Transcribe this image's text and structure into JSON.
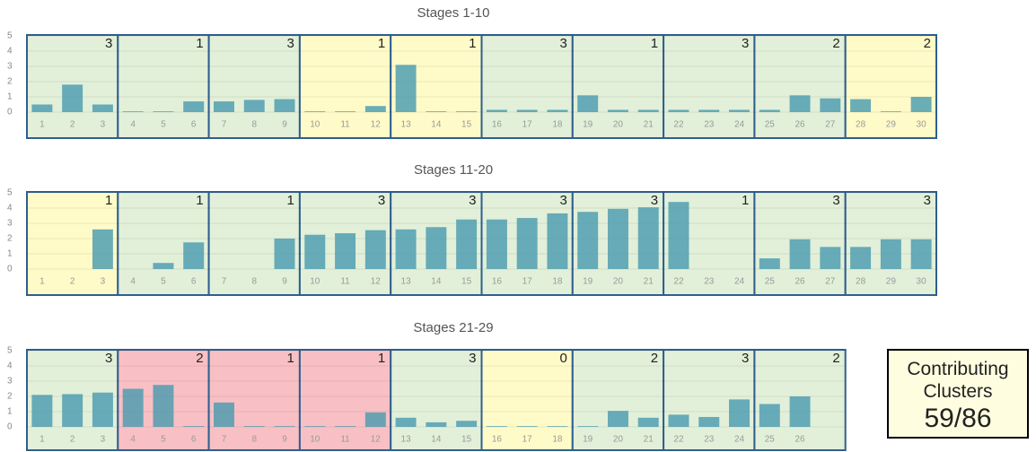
{
  "chart_data": [
    {
      "type": "bar",
      "title": "Stages 1-10",
      "color": "#4a9bb0",
      "categories": [
        "1",
        "2",
        "3",
        "4",
        "5",
        "6",
        "7",
        "8",
        "9",
        "10",
        "11",
        "12",
        "13",
        "14",
        "15",
        "16",
        "17",
        "18",
        "19",
        "20",
        "21",
        "22",
        "23",
        "24",
        "25",
        "26",
        "27",
        "28",
        "29",
        "30"
      ],
      "values": [
        0.5,
        1.8,
        0.5,
        0.05,
        0.05,
        0.7,
        0.7,
        0.8,
        0.85,
        0.05,
        0.05,
        0.4,
        3.1,
        0.05,
        0.05,
        0.15,
        0.15,
        0.15,
        1.1,
        0.15,
        0.15,
        0.15,
        0.15,
        0.15,
        0.15,
        1.1,
        0.9,
        0.85,
        0.05,
        1.0
      ],
      "stages": [
        {
          "count": 3,
          "color": "#e2f0d9"
        },
        {
          "count": 1,
          "color": "#e2f0d9"
        },
        {
          "count": 3,
          "color": "#e2f0d9"
        },
        {
          "count": 1,
          "color": "#fffbc8"
        },
        {
          "count": 1,
          "color": "#fffbc8"
        },
        {
          "count": 3,
          "color": "#e2f0d9"
        },
        {
          "count": 1,
          "color": "#e2f0d9"
        },
        {
          "count": 3,
          "color": "#e2f0d9"
        },
        {
          "count": 2,
          "color": "#e2f0d9"
        },
        {
          "count": 2,
          "color": "#fffbc8"
        }
      ],
      "ylim": [
        0,
        5
      ],
      "yticks": [
        0,
        1,
        2,
        3,
        4,
        5
      ],
      "grid": true
    },
    {
      "type": "bar",
      "title": "Stages 11-20",
      "color": "#4a9bb0",
      "categories": [
        "1",
        "2",
        "3",
        "4",
        "5",
        "6",
        "7",
        "8",
        "9",
        "10",
        "11",
        "12",
        "13",
        "14",
        "15",
        "16",
        "17",
        "18",
        "19",
        "20",
        "21",
        "22",
        "23",
        "24",
        "25",
        "26",
        "27",
        "28",
        "29",
        "30"
      ],
      "values": [
        0,
        0,
        2.6,
        0,
        0.4,
        1.75,
        0,
        0,
        2.0,
        2.25,
        2.35,
        2.55,
        2.6,
        2.75,
        3.25,
        3.25,
        3.35,
        3.65,
        3.75,
        3.95,
        4.05,
        4.4,
        0,
        0,
        0.7,
        1.95,
        1.45,
        1.45,
        1.95,
        1.95
      ],
      "stages": [
        {
          "count": 1,
          "color": "#fffbc8"
        },
        {
          "count": 1,
          "color": "#e2f0d9"
        },
        {
          "count": 1,
          "color": "#e2f0d9"
        },
        {
          "count": 3,
          "color": "#e2f0d9"
        },
        {
          "count": 3,
          "color": "#e2f0d9"
        },
        {
          "count": 3,
          "color": "#e2f0d9"
        },
        {
          "count": 3,
          "color": "#e2f0d9"
        },
        {
          "count": 1,
          "color": "#e2f0d9"
        },
        {
          "count": 3,
          "color": "#e2f0d9"
        },
        {
          "count": 3,
          "color": "#e2f0d9"
        }
      ],
      "ylim": [
        0,
        5
      ],
      "yticks": [
        0,
        1,
        2,
        3,
        4,
        5
      ],
      "grid": true
    },
    {
      "type": "bar",
      "title": "Stages 21-29",
      "color": "#4a9bb0",
      "categories": [
        "1",
        "2",
        "3",
        "4",
        "5",
        "6",
        "7",
        "8",
        "9",
        "10",
        "11",
        "12",
        "13",
        "14",
        "15",
        "16",
        "17",
        "18",
        "19",
        "20",
        "21",
        "22",
        "23",
        "24",
        "25",
        "26"
      ],
      "values": [
        2.1,
        2.15,
        2.25,
        2.5,
        2.75,
        0.05,
        1.6,
        0.05,
        0.05,
        0.05,
        0.05,
        0.95,
        0.6,
        0.3,
        0.4,
        0.05,
        0.05,
        0.05,
        0.05,
        1.05,
        0.6,
        0.8,
        0.65,
        1.8,
        1.5,
        2.0
      ],
      "stages": [
        {
          "count": 3,
          "color": "#e2f0d9"
        },
        {
          "count": 2,
          "color": "#f8c0c4"
        },
        {
          "count": 1,
          "color": "#f8c0c4"
        },
        {
          "count": 1,
          "color": "#f8c0c4"
        },
        {
          "count": 3,
          "color": "#e2f0d9"
        },
        {
          "count": 0,
          "color": "#fffbc8"
        },
        {
          "count": 2,
          "color": "#e2f0d9"
        },
        {
          "count": 3,
          "color": "#e2f0d9"
        },
        {
          "count": 2,
          "color": "#e2f0d9"
        }
      ],
      "ylim": [
        0,
        5
      ],
      "yticks": [
        0,
        1,
        2,
        3,
        4,
        5
      ],
      "grid": true
    }
  ],
  "summary": {
    "label": "Contributing Clusters",
    "value": "59/86"
  }
}
